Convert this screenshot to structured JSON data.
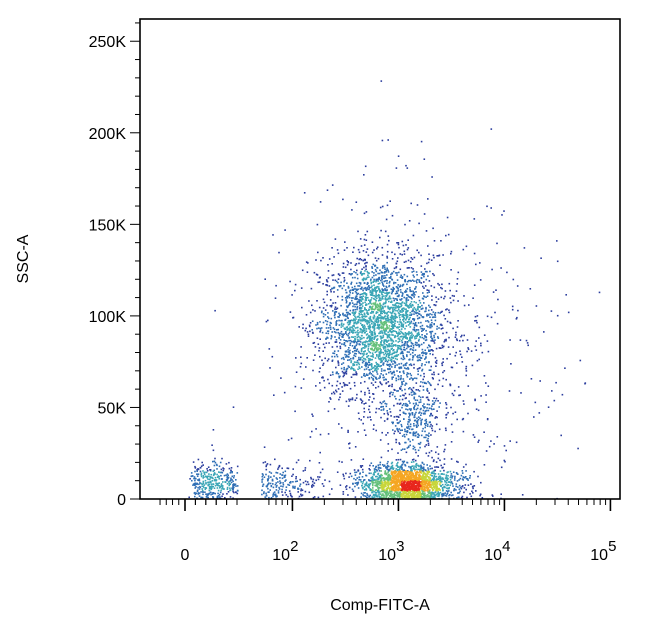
{
  "chart_data": {
    "type": "scatter",
    "title": "",
    "xlabel": "Comp-FITC-A",
    "ylabel": "SSC-A",
    "x_scale": "biexponential",
    "y_scale": "linear",
    "xlim": [
      -200,
      300000
    ],
    "ylim": [
      0,
      262144
    ],
    "grid": false,
    "legend": "none",
    "x_tick_labels": [
      {
        "value": 0,
        "base": "0",
        "exp": ""
      },
      {
        "value": 100,
        "base": "10",
        "exp": "2"
      },
      {
        "value": 1000,
        "base": "10",
        "exp": "3"
      },
      {
        "value": 10000,
        "base": "10",
        "exp": "4"
      },
      {
        "value": 100000,
        "base": "10",
        "exp": "5"
      }
    ],
    "y_ticks": [
      {
        "value": 0,
        "label": "0"
      },
      {
        "value": 50000,
        "label": "50K"
      },
      {
        "value": 100000,
        "label": "100K"
      },
      {
        "value": 150000,
        "label": "150K"
      },
      {
        "value": 200000,
        "label": "200K"
      },
      {
        "value": 250000,
        "label": "250K"
      }
    ],
    "density_colors": [
      "#2c3e9e",
      "#2f6fb5",
      "#3aa6b6",
      "#64c07a",
      "#c8d63a",
      "#f5a623",
      "#e8261d"
    ],
    "populations": [
      {
        "name": "",
        "center_x": 650,
        "center_y": 95000,
        "spread_x_decades": 0.28,
        "spread_y": 19000,
        "count": 2600
      },
      {
        "name": "",
        "center_x": 1200,
        "center_y": 9000,
        "spread_x_decades": 0.22,
        "spread_y": 5000,
        "count": 1900
      },
      {
        "name": "",
        "center_x": 1400,
        "center_y": 43000,
        "spread_x_decades": 0.12,
        "spread_y": 9000,
        "count": 260
      },
      {
        "name": "",
        "center_x": 40,
        "center_y": 9000,
        "spread_x_decades": 0.35,
        "spread_y": 5500,
        "count": 520
      },
      {
        "name": "",
        "center_x": 1200,
        "center_y": 80000,
        "spread_x_decades": 0.6,
        "spread_y": 45000,
        "count": 650
      }
    ]
  }
}
